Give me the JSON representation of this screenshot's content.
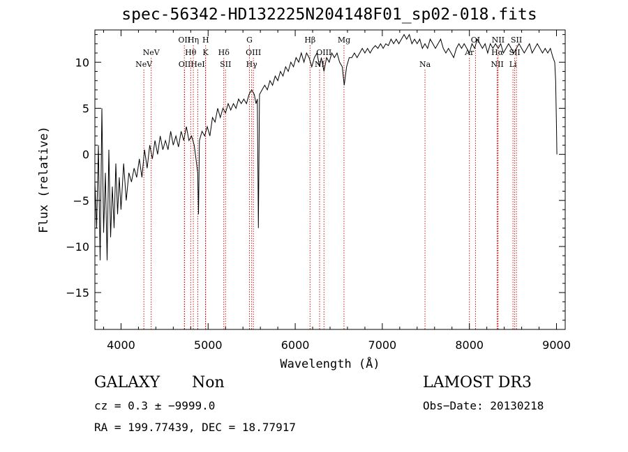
{
  "chart_data": {
    "type": "line",
    "title": "spec-56342-HD132225N204148F01_sp02-018.fits",
    "xlabel": "Wavelength (Å)",
    "ylabel": "Flux (relative)",
    "xlim": [
      3700,
      9100
    ],
    "ylim": [
      -19,
      13.5
    ],
    "xticks": [
      4000,
      5000,
      6000,
      7000,
      8000,
      9000
    ],
    "yticks": [
      -15,
      -10,
      -5,
      0,
      5,
      10
    ],
    "tick_labels": {
      "x": [
        "4000",
        "5000",
        "6000",
        "7000",
        "8000",
        "9000"
      ],
      "y": [
        "−15",
        "−10",
        "−5",
        "0",
        "5",
        "10"
      ]
    },
    "grid": false,
    "series": [
      {
        "name": "spectrum",
        "color": "#000000",
        "points": [
          [
            3700,
            -3.0
          ],
          [
            3720,
            -8.0
          ],
          [
            3740,
            1.0
          ],
          [
            3760,
            -11.5
          ],
          [
            3780,
            5.0
          ],
          [
            3800,
            -8.5
          ],
          [
            3820,
            -2.0
          ],
          [
            3840,
            -11.5
          ],
          [
            3860,
            0.5
          ],
          [
            3880,
            -9.0
          ],
          [
            3900,
            -3.5
          ],
          [
            3920,
            -8.0
          ],
          [
            3940,
            -1.0
          ],
          [
            3960,
            -6.5
          ],
          [
            3980,
            -2.5
          ],
          [
            4000,
            -6.0
          ],
          [
            4030,
            -1.0
          ],
          [
            4060,
            -5.0
          ],
          [
            4090,
            -2.0
          ],
          [
            4120,
            -3.0
          ],
          [
            4150,
            -1.5
          ],
          [
            4180,
            -2.5
          ],
          [
            4210,
            -0.5
          ],
          [
            4240,
            -2.5
          ],
          [
            4270,
            0.5
          ],
          [
            4300,
            -1.5
          ],
          [
            4330,
            1.0
          ],
          [
            4360,
            -0.5
          ],
          [
            4390,
            1.5
          ],
          [
            4420,
            0.0
          ],
          [
            4450,
            2.0
          ],
          [
            4480,
            0.5
          ],
          [
            4510,
            1.5
          ],
          [
            4540,
            0.5
          ],
          [
            4570,
            2.5
          ],
          [
            4600,
            1.0
          ],
          [
            4630,
            2.0
          ],
          [
            4660,
            0.8
          ],
          [
            4690,
            2.5
          ],
          [
            4720,
            1.5
          ],
          [
            4750,
            3.0
          ],
          [
            4780,
            1.5
          ],
          [
            4810,
            2.0
          ],
          [
            4840,
            1.0
          ],
          [
            4861,
            -0.5
          ],
          [
            4880,
            -2.0
          ],
          [
            4890,
            -6.5
          ],
          [
            4900,
            1.5
          ],
          [
            4930,
            2.5
          ],
          [
            4960,
            2.0
          ],
          [
            4990,
            3.0
          ],
          [
            5020,
            2.0
          ],
          [
            5050,
            4.0
          ],
          [
            5080,
            3.5
          ],
          [
            5110,
            5.0
          ],
          [
            5140,
            4.0
          ],
          [
            5170,
            5.0
          ],
          [
            5200,
            4.5
          ],
          [
            5230,
            5.5
          ],
          [
            5260,
            4.8
          ],
          [
            5290,
            5.5
          ],
          [
            5320,
            5.0
          ],
          [
            5350,
            6.0
          ],
          [
            5380,
            5.5
          ],
          [
            5410,
            6.0
          ],
          [
            5440,
            5.5
          ],
          [
            5470,
            6.5
          ],
          [
            5500,
            7.0
          ],
          [
            5530,
            6.5
          ],
          [
            5550,
            5.5
          ],
          [
            5565,
            6.0
          ],
          [
            5577,
            -8.0
          ],
          [
            5590,
            6.5
          ],
          [
            5620,
            7.0
          ],
          [
            5650,
            7.5
          ],
          [
            5680,
            7.0
          ],
          [
            5710,
            8.0
          ],
          [
            5740,
            7.5
          ],
          [
            5770,
            8.5
          ],
          [
            5800,
            8.0
          ],
          [
            5830,
            9.0
          ],
          [
            5860,
            8.5
          ],
          [
            5890,
            9.5
          ],
          [
            5920,
            9.0
          ],
          [
            5950,
            10.0
          ],
          [
            5980,
            9.5
          ],
          [
            6010,
            10.5
          ],
          [
            6040,
            10.0
          ],
          [
            6070,
            11.0
          ],
          [
            6100,
            10.0
          ],
          [
            6130,
            11.0
          ],
          [
            6160,
            10.5
          ],
          [
            6190,
            9.5
          ],
          [
            6220,
            10.5
          ],
          [
            6250,
            11.0
          ],
          [
            6280,
            9.5
          ],
          [
            6300,
            10.5
          ],
          [
            6330,
            9.0
          ],
          [
            6360,
            10.5
          ],
          [
            6390,
            10.0
          ],
          [
            6420,
            11.0
          ],
          [
            6450,
            10.5
          ],
          [
            6480,
            11.0
          ],
          [
            6510,
            10.0
          ],
          [
            6540,
            9.5
          ],
          [
            6563,
            7.5
          ],
          [
            6590,
            9.5
          ],
          [
            6620,
            10.5
          ],
          [
            6650,
            10.5
          ],
          [
            6680,
            11.0
          ],
          [
            6710,
            10.5
          ],
          [
            6740,
            11.0
          ],
          [
            6770,
            11.5
          ],
          [
            6800,
            11.0
          ],
          [
            6830,
            11.5
          ],
          [
            6860,
            11.0
          ],
          [
            6890,
            11.5
          ],
          [
            6920,
            11.8
          ],
          [
            6950,
            11.5
          ],
          [
            6980,
            12.0
          ],
          [
            7010,
            11.5
          ],
          [
            7040,
            12.0
          ],
          [
            7070,
            11.8
          ],
          [
            7100,
            12.5
          ],
          [
            7130,
            12.0
          ],
          [
            7160,
            12.5
          ],
          [
            7190,
            12.0
          ],
          [
            7220,
            12.5
          ],
          [
            7250,
            13.0
          ],
          [
            7280,
            12.5
          ],
          [
            7310,
            13.0
          ],
          [
            7340,
            12.0
          ],
          [
            7370,
            12.5
          ],
          [
            7400,
            12.0
          ],
          [
            7430,
            12.5
          ],
          [
            7460,
            11.5
          ],
          [
            7490,
            12.0
          ],
          [
            7520,
            11.5
          ],
          [
            7550,
            12.5
          ],
          [
            7580,
            12.0
          ],
          [
            7610,
            11.5
          ],
          [
            7640,
            12.0
          ],
          [
            7670,
            12.5
          ],
          [
            7700,
            11.5
          ],
          [
            7730,
            11.0
          ],
          [
            7760,
            11.5
          ],
          [
            7790,
            11.0
          ],
          [
            7820,
            10.5
          ],
          [
            7850,
            11.5
          ],
          [
            7880,
            12.0
          ],
          [
            7910,
            11.5
          ],
          [
            7940,
            12.0
          ],
          [
            7970,
            11.5
          ],
          [
            8000,
            11.0
          ],
          [
            8030,
            12.0
          ],
          [
            8060,
            11.5
          ],
          [
            8090,
            12.5
          ],
          [
            8120,
            12.0
          ],
          [
            8150,
            11.5
          ],
          [
            8180,
            12.0
          ],
          [
            8210,
            11.0
          ],
          [
            8240,
            12.0
          ],
          [
            8270,
            11.5
          ],
          [
            8300,
            12.0
          ],
          [
            8330,
            11.5
          ],
          [
            8360,
            12.0
          ],
          [
            8390,
            11.0
          ],
          [
            8420,
            11.5
          ],
          [
            8450,
            12.0
          ],
          [
            8480,
            11.5
          ],
          [
            8510,
            11.0
          ],
          [
            8540,
            11.5
          ],
          [
            8570,
            12.0
          ],
          [
            8600,
            11.5
          ],
          [
            8630,
            11.0
          ],
          [
            8660,
            11.5
          ],
          [
            8690,
            12.0
          ],
          [
            8720,
            11.0
          ],
          [
            8750,
            11.5
          ],
          [
            8780,
            12.0
          ],
          [
            8810,
            11.5
          ],
          [
            8840,
            11.0
          ],
          [
            8870,
            11.5
          ],
          [
            8900,
            11.0
          ],
          [
            8930,
            11.5
          ],
          [
            8960,
            10.5
          ],
          [
            8980,
            10.0
          ],
          [
            8990,
            8.0
          ],
          [
            9000,
            3.0
          ],
          [
            9005,
            0.0
          ]
        ]
      }
    ],
    "lines": [
      {
        "label": "NeV",
        "x": 4262,
        "row": 2
      },
      {
        "label": "NeV",
        "x": 4346,
        "row": 1
      },
      {
        "label": "OII",
        "x": 4727,
        "row": 0
      },
      {
        "label": "OII",
        "x": 4730,
        "row": 2
      },
      {
        "label": "Hη",
        "x": 4830,
        "row": 0
      },
      {
        "label": "Hθ",
        "x": 4800,
        "row": 1
      },
      {
        "label": "HeI",
        "x": 4882,
        "row": 2
      },
      {
        "label": "H",
        "x": 4972,
        "row": 0
      },
      {
        "label": "K",
        "x": 4970,
        "row": 1
      },
      {
        "label": "Hδ",
        "x": 5180,
        "row": 1
      },
      {
        "label": "SII",
        "x": 5200,
        "row": 2
      },
      {
        "label": "G",
        "x": 5475,
        "row": 0
      },
      {
        "label": "OIII",
        "x": 5520,
        "row": 1
      },
      {
        "label": "Hγ",
        "x": 5500,
        "row": 2
      },
      {
        "label": "Hβ",
        "x": 6170,
        "row": 0
      },
      {
        "label": "OIII",
        "x": 6330,
        "row": 1
      },
      {
        "label": "NI",
        "x": 6280,
        "row": 2
      },
      {
        "label": "Mg",
        "x": 6560,
        "row": 0
      },
      {
        "label": "Na",
        "x": 7490,
        "row": 2
      },
      {
        "label": "OI",
        "x": 8070,
        "row": 0
      },
      {
        "label": "Ar",
        "x": 8000,
        "row": 1
      },
      {
        "label": "NII",
        "x": 8330,
        "row": 0
      },
      {
        "label": "Hα",
        "x": 8320,
        "row": 1
      },
      {
        "label": "NII",
        "x": 8320,
        "row": 2
      },
      {
        "label": "SII",
        "x": 8540,
        "row": 0
      },
      {
        "label": "SII",
        "x": 8520,
        "row": 1
      },
      {
        "label": "Li",
        "x": 8500,
        "row": 2
      }
    ],
    "line_color": "#cc0000"
  },
  "info": {
    "class_label": "GALAXY",
    "subclass": "Non",
    "survey": "LAMOST DR3",
    "cz": "cz = 0.3 ± −9999.0",
    "obs_date": "Obs−Date: 20130218",
    "coords": "RA = 199.77439, DEC =  18.77917"
  }
}
